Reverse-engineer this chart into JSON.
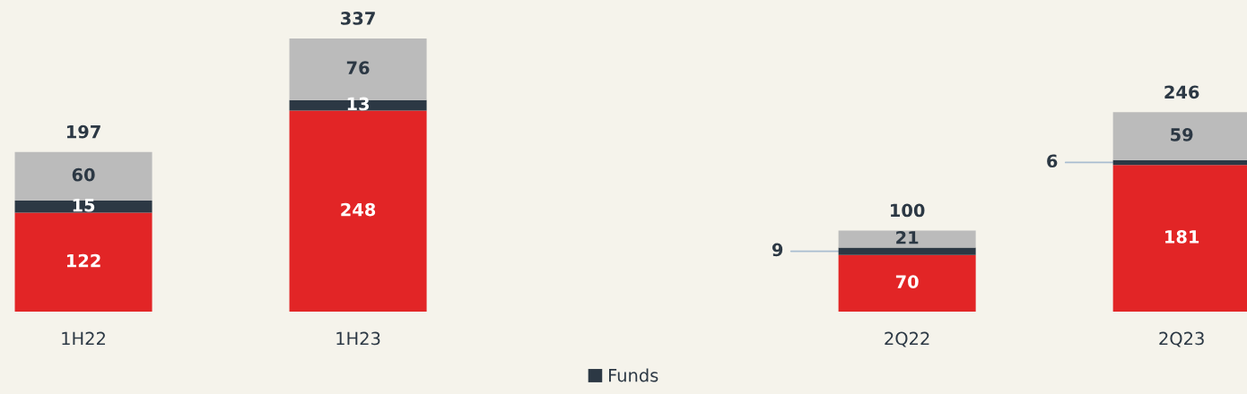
{
  "chart_data": {
    "type": "bar",
    "stacked": true,
    "categories": [
      "1H22",
      "1H23",
      null,
      "2Q22",
      "2Q23"
    ],
    "series": [
      {
        "color": "#e22526",
        "values": [
          122,
          248,
          null,
          70,
          181
        ],
        "value_labels": [
          "122",
          "248",
          null,
          "70",
          "181"
        ]
      },
      {
        "name": "Funds",
        "color": "#2c3844",
        "values": [
          15,
          13,
          null,
          9,
          6
        ],
        "value_labels": [
          "15",
          "13",
          null,
          null,
          null
        ]
      },
      {
        "color": "#bbbbbb",
        "values": [
          60,
          76,
          null,
          21,
          59
        ],
        "value_labels": [
          "60",
          "76",
          null,
          "21",
          "59"
        ]
      }
    ],
    "annotations": [
      {
        "text": "9",
        "x": "2Q22",
        "y": 74.5
      },
      {
        "text": "6",
        "x": "2Q23",
        "y": 184
      }
    ],
    "totals": [
      "197",
      "337",
      null,
      "100",
      "246"
    ],
    "legend": "bottom",
    "tick_labels": "x"
  }
}
